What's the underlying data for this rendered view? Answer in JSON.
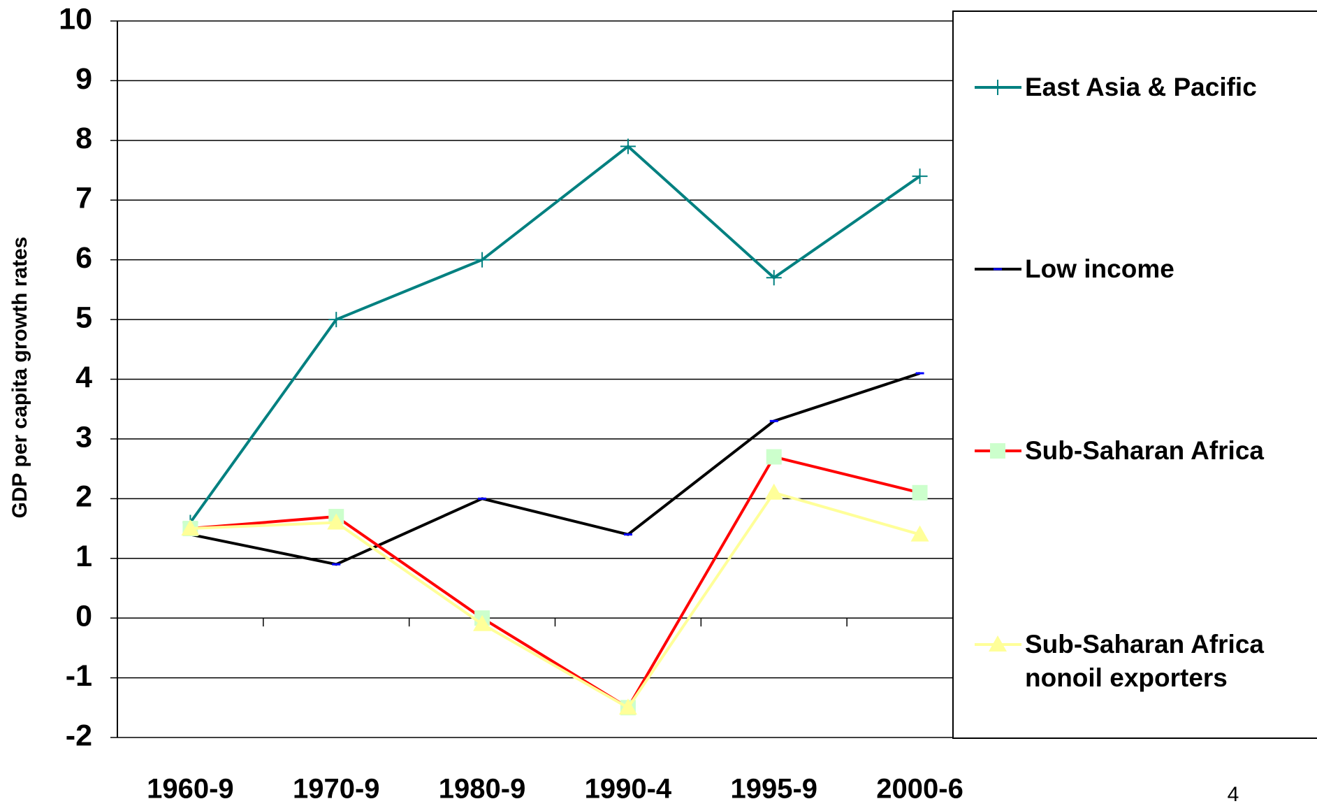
{
  "chart_data": {
    "type": "line",
    "y_label": "GDP per capita growth rates",
    "categories": [
      "1960-9",
      "1970-9",
      "1980-9",
      "1990-4",
      "1995-9",
      "2000-6"
    ],
    "series": [
      {
        "name": "East Asia & Pacific",
        "color": "#008080",
        "marker": "plus",
        "marker_color": "#008080",
        "values": [
          1.6,
          5.0,
          6.0,
          7.9,
          5.7,
          7.4
        ]
      },
      {
        "name": "Low income",
        "color": "#000000",
        "marker": "dash",
        "marker_color": "#0000ff",
        "values": [
          1.4,
          0.9,
          2.0,
          1.4,
          3.3,
          4.1
        ]
      },
      {
        "name": "Sub-Saharan Africa",
        "color": "#ff0000",
        "marker": "square",
        "marker_color": "#ccffcc",
        "values": [
          1.5,
          1.7,
          0.0,
          -1.5,
          2.7,
          2.1
        ]
      },
      {
        "name": "Sub-Saharan Africa nonoil exporters",
        "color": "#ffff99",
        "marker": "triangle",
        "marker_color": "#ffff99",
        "values": [
          1.5,
          1.6,
          -0.1,
          -1.5,
          2.1,
          1.4
        ]
      }
    ],
    "ylim": [
      -2,
      10
    ],
    "yticks": [
      -2,
      -1,
      0,
      1,
      2,
      3,
      4,
      5,
      6,
      7,
      8,
      9,
      10
    ],
    "grid": true,
    "legend": "right",
    "page_number": "4"
  }
}
